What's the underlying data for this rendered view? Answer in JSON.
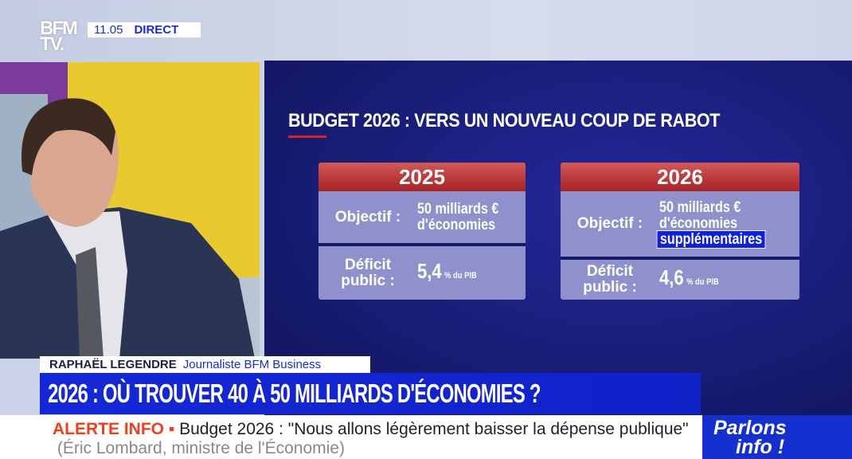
{
  "channel": {
    "logo_line1": "BFM",
    "logo_line2": "TV.",
    "time": "11.05",
    "live": "DIRECT"
  },
  "graphic": {
    "title": "BUDGET 2026 : VERS UN NOUVEAU COUP DE RABOT",
    "cards": [
      {
        "year": "2025",
        "objectif_label": "Objectif :",
        "objectif_value_l1": "50 milliards €",
        "objectif_value_l2": "d'économies",
        "deficit_label_l1": "Déficit",
        "deficit_label_l2": "public :",
        "deficit_value": "5,4",
        "deficit_unit": "% du PIB"
      },
      {
        "year": "2026",
        "objectif_label": "Objectif :",
        "objectif_value_l1": "50 milliards €",
        "objectif_value_l2": "d'économies",
        "objectif_highlight": "supplémentaires",
        "deficit_label_l1": "Déficit",
        "deficit_label_l2": "public :",
        "deficit_value": "4,6",
        "deficit_unit": "% du PIB"
      }
    ]
  },
  "lower_third": {
    "name": "RAPHAËL LEGENDRE",
    "role": "Journaliste BFM Business",
    "headline": "2026 : OÙ TROUVER 40 À 50 MILLIARDS D'ÉCONOMIES ?"
  },
  "ticker": {
    "label": "ALERTE INFO ▪",
    "text": "Budget 2026 : \"Nous allons légèrement baisser la dépense publique\"",
    "source": "(Éric Lombard, ministre de l'Économie)"
  },
  "show": {
    "line1": "Parlons",
    "line2": "info !"
  },
  "colors": {
    "accent_blue": "#1428d8",
    "alert_red": "#f0401a",
    "card_header": "#b83232",
    "screen_bg": "#1a1f80"
  }
}
